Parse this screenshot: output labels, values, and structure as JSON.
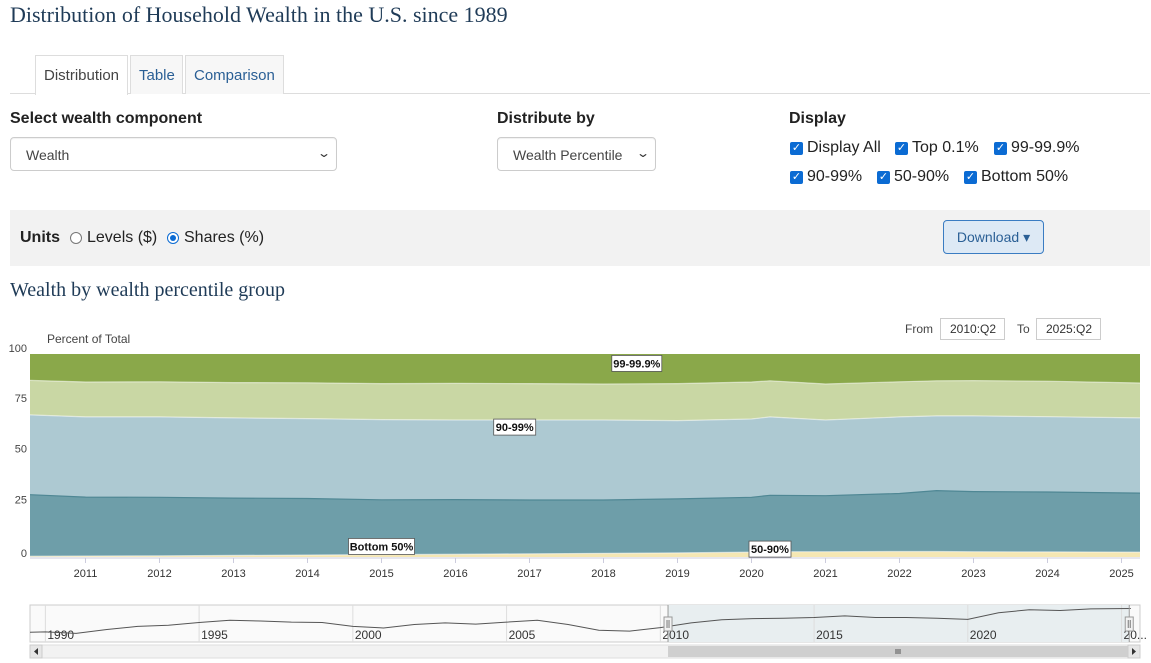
{
  "page_title": "Distribution of Household Wealth in the U.S. since 1989",
  "tabs": [
    {
      "label": "Distribution",
      "active": true
    },
    {
      "label": "Table",
      "active": false
    },
    {
      "label": "Comparison",
      "active": false
    }
  ],
  "controls": {
    "component_label": "Select wealth component",
    "component_value": "Wealth",
    "distribute_label": "Distribute by",
    "distribute_value": "Wealth Percentile",
    "display_label": "Display",
    "display_options": [
      {
        "label": "Display All",
        "checked": true
      },
      {
        "label": "Top 0.1%",
        "checked": true
      },
      {
        "label": "99-99.9%",
        "checked": true
      },
      {
        "label": "90-99%",
        "checked": true
      },
      {
        "label": "50-90%",
        "checked": true
      },
      {
        "label": "Bottom 50%",
        "checked": true
      }
    ]
  },
  "units": {
    "label": "Units",
    "options": [
      {
        "label": "Levels ($)",
        "selected": false
      },
      {
        "label": "Shares (%)",
        "selected": true
      }
    ],
    "download_label": "Download",
    "download_caret": "▾"
  },
  "section_title": "Wealth by wealth percentile group",
  "range": {
    "from_label": "From",
    "from_value": "2010:Q2",
    "to_label": "To",
    "to_value": "2025:Q2"
  },
  "colors": {
    "top01": "#8aa84a",
    "p99_999": "#c9d7a4",
    "p90_99": "#adc9d2",
    "p50_90": "#6e9ea9",
    "bottom50": "#f5e7b3",
    "navigator_line": "#555555",
    "selected_range": "#e8eef0"
  },
  "chart_data": {
    "type": "area",
    "stacked": true,
    "ylabel": "Percent of Total",
    "ylim": [
      0,
      100
    ],
    "yticks": [
      0,
      25,
      50,
      75,
      100
    ],
    "x": [
      2010.25,
      2011,
      2012,
      2013,
      2014,
      2015,
      2016,
      2017,
      2018,
      2019,
      2020,
      2020.25,
      2021,
      2022,
      2022.5,
      2023,
      2024,
      2025.25
    ],
    "xticks": [
      2011,
      2012,
      2013,
      2014,
      2015,
      2016,
      2017,
      2018,
      2019,
      2020,
      2021,
      2022,
      2023,
      2024,
      2025
    ],
    "series": [
      {
        "name": "Bottom 50%",
        "values": [
          0.4,
          0.5,
          0.6,
          0.8,
          1.0,
          1.2,
          1.4,
          1.6,
          1.8,
          2.0,
          2.4,
          2.6,
          2.6,
          2.7,
          2.7,
          2.6,
          2.5,
          2.4
        ]
      },
      {
        "name": "50-90%",
        "values": [
          30.3,
          29.0,
          28.8,
          28.2,
          27.8,
          27.0,
          26.9,
          26.5,
          26.3,
          26.6,
          27.0,
          27.8,
          27.6,
          28.6,
          30.0,
          29.6,
          29.5,
          29.1
        ]
      },
      {
        "name": "90-99%",
        "values": [
          39.3,
          39.5,
          39.6,
          39.5,
          39.4,
          39.5,
          39.2,
          39.4,
          39.4,
          38.6,
          38.6,
          38.6,
          37.3,
          37.7,
          36.8,
          37.3,
          37.1,
          37.0
        ]
      },
      {
        "name": "99-99.9%",
        "values": [
          17.0,
          17.2,
          17.3,
          17.4,
          17.6,
          17.7,
          18.0,
          17.9,
          17.7,
          18.2,
          18.2,
          17.8,
          17.7,
          17.3,
          17.3,
          17.4,
          17.5,
          17.2
        ]
      },
      {
        "name": "Top 0.1%",
        "values": [
          13.0,
          13.8,
          13.7,
          14.1,
          14.2,
          14.6,
          14.5,
          14.6,
          14.8,
          14.6,
          13.8,
          13.2,
          14.8,
          13.7,
          13.2,
          13.1,
          13.4,
          14.3
        ]
      }
    ],
    "labels": [
      "99-99.9%",
      "90-99%",
      "50-90%",
      "Bottom 50%"
    ],
    "navigator": {
      "xticks": [
        "1990",
        "1995",
        "2000",
        "2005",
        "2010",
        "2015",
        "2020",
        "20..."
      ],
      "x": [
        1989.5,
        1990,
        1991,
        1992,
        1993,
        1994,
        1995,
        1996,
        1997,
        1998,
        1999,
        2000,
        2001,
        2002,
        2003,
        2004,
        2005,
        2006,
        2007,
        2008,
        2009,
        2010,
        2011,
        2012,
        2013,
        2014,
        2015,
        2016,
        2017,
        2018,
        2019,
        2020,
        2021,
        2022,
        2023,
        2024,
        2025.3
      ],
      "values": [
        35.5,
        35.6,
        35.2,
        36.2,
        37.0,
        37.3,
        38.0,
        38.6,
        38.4,
        38.1,
        38.0,
        37.0,
        36.6,
        37.5,
        37.9,
        37.6,
        38.1,
        38.6,
        37.5,
        36.0,
        35.8,
        36.7,
        37.9,
        38.7,
        39.0,
        39.1,
        39.3,
        39.7,
        39.3,
        39.3,
        39.1,
        38.8,
        40.5,
        41.3,
        41.1,
        41.5,
        41.6
      ],
      "selected_from": 2010.25,
      "selected_to": 2025.25
    }
  }
}
